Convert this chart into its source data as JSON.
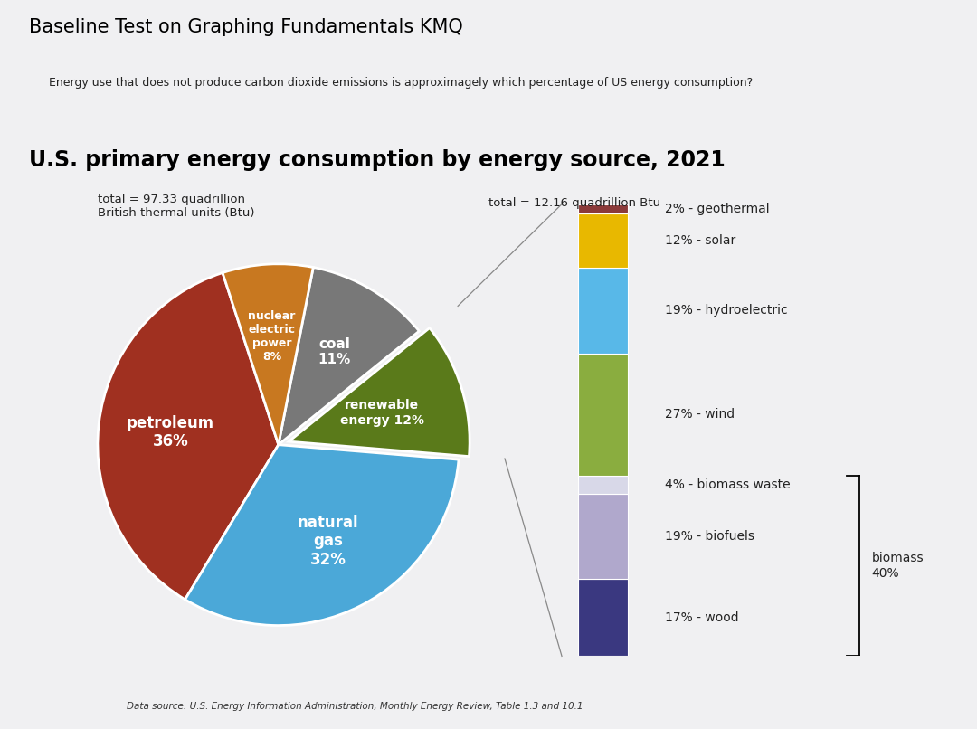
{
  "page_title": "Baseline Test on Graphing Fundamentals KMQ",
  "question": "Energy use that does not produce carbon dioxide emissions is approximagely which percentage of US energy consumption?",
  "chart_title": "U.S. primary energy consumption by energy source, 2021",
  "total_left": "total = 97.33 quadrillion\nBritish thermal units (Btu)",
  "total_right": "total = 12.16 quadrillion Btu",
  "data_source": "Data source: U.S. Energy Information Administration, Monthly Energy Review, Table 1.3 and 10.1",
  "pie_slices": [
    {
      "label": "petroleum\n36%",
      "value": 36,
      "color": "#A03020",
      "text_color": "white",
      "fontsize": 12
    },
    {
      "label": "natural\ngas\n32%",
      "value": 32,
      "color": "#4BA8D8",
      "text_color": "white",
      "fontsize": 12
    },
    {
      "label": "renewable\nenergy 12%",
      "value": 12,
      "color": "#5A7A1A",
      "text_color": "white",
      "fontsize": 10
    },
    {
      "label": "coal\n11%",
      "value": 11,
      "color": "#787878",
      "text_color": "white",
      "fontsize": 11
    },
    {
      "label": "nuclear\nelectric\npower\n8%",
      "value": 8,
      "color": "#C87820",
      "text_color": "white",
      "fontsize": 9
    }
  ],
  "pie_startangle": 108,
  "pie_explode_index": 2,
  "pie_explode_amount": 0.06,
  "bar_segments_topdown": [
    {
      "label": "2% - geothermal",
      "value": 2,
      "color": "#8B3A3A"
    },
    {
      "label": "12% - solar",
      "value": 12,
      "color": "#E8B800"
    },
    {
      "label": "19% - hydroelectric",
      "value": 19,
      "color": "#58B8E8"
    },
    {
      "label": "27% - wind",
      "value": 27,
      "color": "#8AAD3F"
    },
    {
      "label": "4% - biomass waste",
      "value": 4,
      "color": "#D8D8E8"
    },
    {
      "label": "19% - biofuels",
      "value": 19,
      "color": "#B0A8CC"
    },
    {
      "label": "17% - wood",
      "value": 17,
      "color": "#3A3880"
    }
  ],
  "biomass_label": "biomass\n40%",
  "background_color": "#F0F0F2"
}
